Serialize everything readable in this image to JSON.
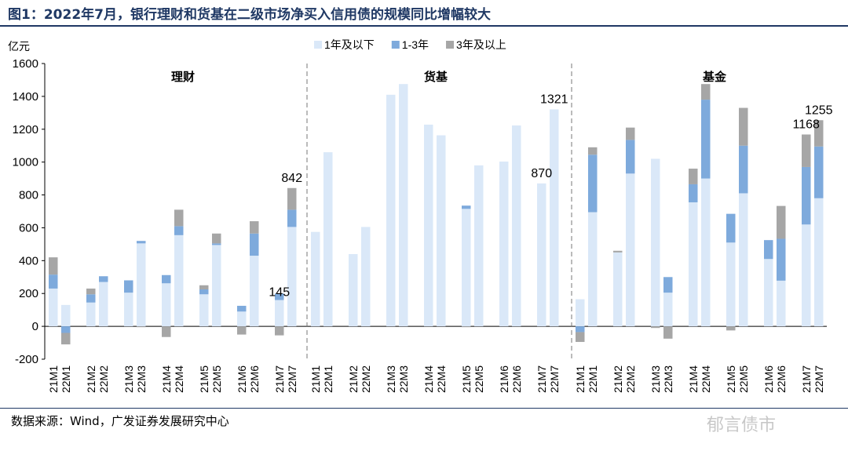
{
  "figure": {
    "title": "图1：2022年7月，银行理财和货基在二级市场净买入信用债的规模同比增幅较大",
    "source": "数据来源：Wind，广发证券发展研究中心",
    "watermark": "郁言债市"
  },
  "chart_data": {
    "type": "stacked-bar",
    "ylabel": "亿元",
    "ylim": [
      -200,
      1600
    ],
    "yticks": [
      -200,
      0,
      200,
      400,
      600,
      800,
      1000,
      1200,
      1400,
      1600
    ],
    "panels": [
      "理财",
      "货基",
      "基金"
    ],
    "categories": [
      "21M1",
      "22M1",
      "21M2",
      "22M2",
      "21M3",
      "22M3",
      "21M4",
      "22M4",
      "21M5",
      "22M5",
      "21M6",
      "22M6",
      "21M7",
      "22M7"
    ],
    "series": [
      {
        "name": "1年及以下",
        "color": "#dae8f8",
        "values": {
          "理财": [
            230,
            130,
            145,
            270,
            205,
            505,
            262,
            555,
            195,
            495,
            90,
            430,
            160,
            605
          ],
          "货基": [
            575,
            1060,
            440,
            605,
            1410,
            1475,
            1228,
            1163,
            715,
            980,
            1003,
            1223,
            870,
            1321
          ],
          "基金": [
            165,
            695,
            450,
            930,
            1020,
            205,
            755,
            900,
            510,
            810,
            410,
            278,
            620,
            780
          ]
        }
      },
      {
        "name": "1-3年",
        "color": "#7eaadc",
        "values": {
          "理财": [
            85,
            -40,
            50,
            35,
            75,
            15,
            50,
            55,
            30,
            10,
            35,
            135,
            40,
            105
          ],
          "货基": [
            0,
            0,
            0,
            0,
            0,
            0,
            0,
            0,
            20,
            0,
            0,
            0,
            0,
            0
          ],
          "基金": [
            -35,
            350,
            0,
            205,
            0,
            95,
            110,
            480,
            175,
            290,
            115,
            255,
            350,
            315
          ]
        }
      },
      {
        "name": "3年及以上",
        "color": "#a6a6a6",
        "values": {
          "理财": [
            105,
            -70,
            35,
            0,
            0,
            -5,
            -65,
            100,
            25,
            60,
            -50,
            75,
            -55,
            132
          ],
          "货基": [
            0,
            0,
            0,
            0,
            0,
            0,
            0,
            0,
            -5,
            0,
            0,
            0,
            0,
            0
          ],
          "基金": [
            -60,
            45,
            10,
            75,
            -10,
            -75,
            95,
            95,
            -25,
            230,
            0,
            200,
            198,
            160
          ]
        }
      }
    ],
    "annotations": [
      {
        "panel": "理财",
        "category": "21M7",
        "text": "145"
      },
      {
        "panel": "理财",
        "category": "22M7",
        "text": "842"
      },
      {
        "panel": "货基",
        "category": "21M7",
        "text": "870"
      },
      {
        "panel": "货基",
        "category": "22M7",
        "text": "1321"
      },
      {
        "panel": "基金",
        "category": "21M7",
        "text": "1168"
      },
      {
        "panel": "基金",
        "category": "22M7",
        "text": "1255"
      }
    ],
    "legend_position": "top-center"
  }
}
